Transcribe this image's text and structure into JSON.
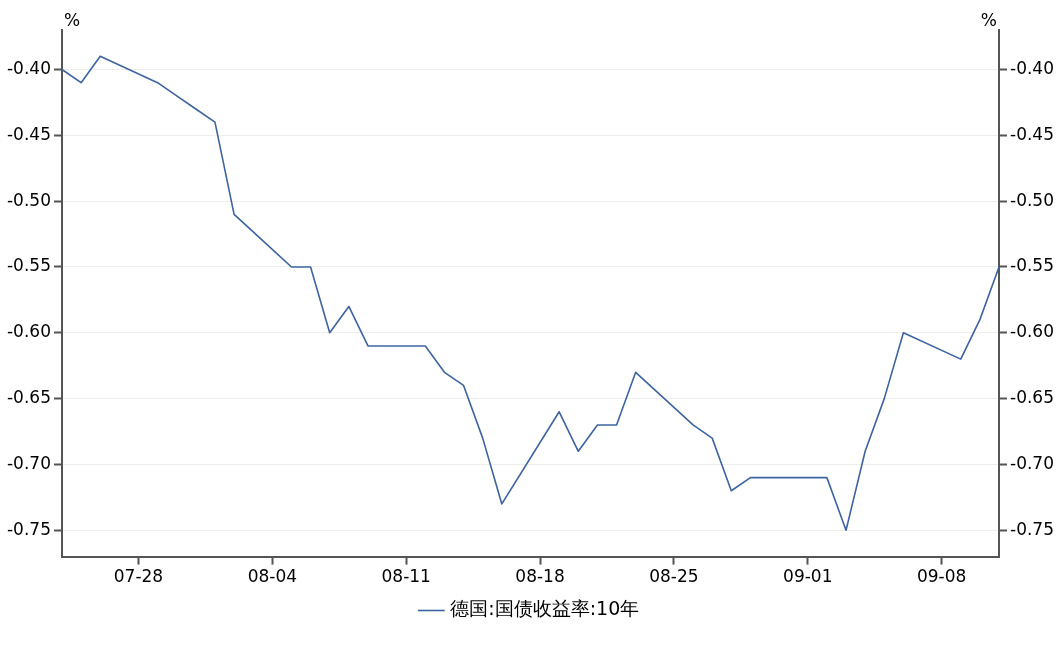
{
  "chart_data": {
    "type": "line",
    "ylabel": "%",
    "y2label": "%",
    "x": [
      "--07-24",
      "--07-25",
      "--07-26",
      "--07-29",
      "--07-30",
      "--07-31",
      "--08-01",
      "--08-02",
      "--08-05",
      "--08-06",
      "--08-07",
      "--08-08",
      "--08-09",
      "--08-12",
      "--08-13",
      "--08-14",
      "--08-15",
      "--08-16",
      "--08-19",
      "--08-20",
      "--08-21",
      "--08-22",
      "--08-23",
      "--08-26",
      "--08-27",
      "--08-28",
      "--08-29",
      "--08-30",
      "--09-02",
      "--09-03",
      "--09-04",
      "--09-05",
      "--09-06",
      "--09-09",
      "--09-10",
      "--09-11"
    ],
    "series": [
      {
        "name": "德国:国债收益率:10年",
        "color": "#3c64a0",
        "values": [
          -0.4,
          -0.41,
          -0.39,
          -0.41,
          -0.42,
          -0.43,
          -0.44,
          -0.51,
          -0.55,
          -0.55,
          -0.6,
          -0.58,
          -0.61,
          -0.61,
          -0.63,
          -0.64,
          -0.68,
          -0.73,
          -0.66,
          -0.69,
          -0.67,
          -0.67,
          -0.63,
          -0.67,
          -0.68,
          -0.72,
          -0.71,
          -0.71,
          -0.71,
          -0.75,
          -0.69,
          -0.65,
          -0.6,
          -0.62,
          -0.59,
          -0.55
        ]
      }
    ],
    "xlim": [
      "--07-24",
      "--09-11"
    ],
    "xticks": [
      {
        "value": "--07-28",
        "label": "07-28"
      },
      {
        "value": "--08-04",
        "label": "08-04"
      },
      {
        "value": "--08-11",
        "label": "08-11"
      },
      {
        "value": "--08-18",
        "label": "08-18"
      },
      {
        "value": "--08-25",
        "label": "08-25"
      },
      {
        "value": "--09-01",
        "label": "09-01"
      },
      {
        "value": "--09-08",
        "label": "09-08"
      }
    ],
    "ylim": [
      -0.77,
      -0.37
    ],
    "yticks": [
      {
        "value": -0.75,
        "label": "-0.75"
      },
      {
        "value": -0.7,
        "label": "-0.70"
      },
      {
        "value": -0.65,
        "label": "-0.65"
      },
      {
        "value": -0.6,
        "label": "-0.60"
      },
      {
        "value": -0.55,
        "label": "-0.55"
      },
      {
        "value": -0.5,
        "label": "-0.50"
      },
      {
        "value": -0.45,
        "label": "-0.45"
      },
      {
        "value": -0.4,
        "label": "-0.40"
      }
    ],
    "y2lim": [
      -0.77,
      -0.37
    ],
    "y2ticks": [
      {
        "value": -0.75,
        "label": "-0.75"
      },
      {
        "value": -0.7,
        "label": "-0.70"
      },
      {
        "value": -0.65,
        "label": "-0.65"
      },
      {
        "value": -0.6,
        "label": "-0.60"
      },
      {
        "value": -0.55,
        "label": "-0.55"
      },
      {
        "value": -0.5,
        "label": "-0.50"
      },
      {
        "value": -0.45,
        "label": "-0.45"
      },
      {
        "value": -0.4,
        "label": "-0.40"
      }
    ],
    "grid": "y",
    "legend": "bottom",
    "marker": "none",
    "line_style": "solid"
  }
}
